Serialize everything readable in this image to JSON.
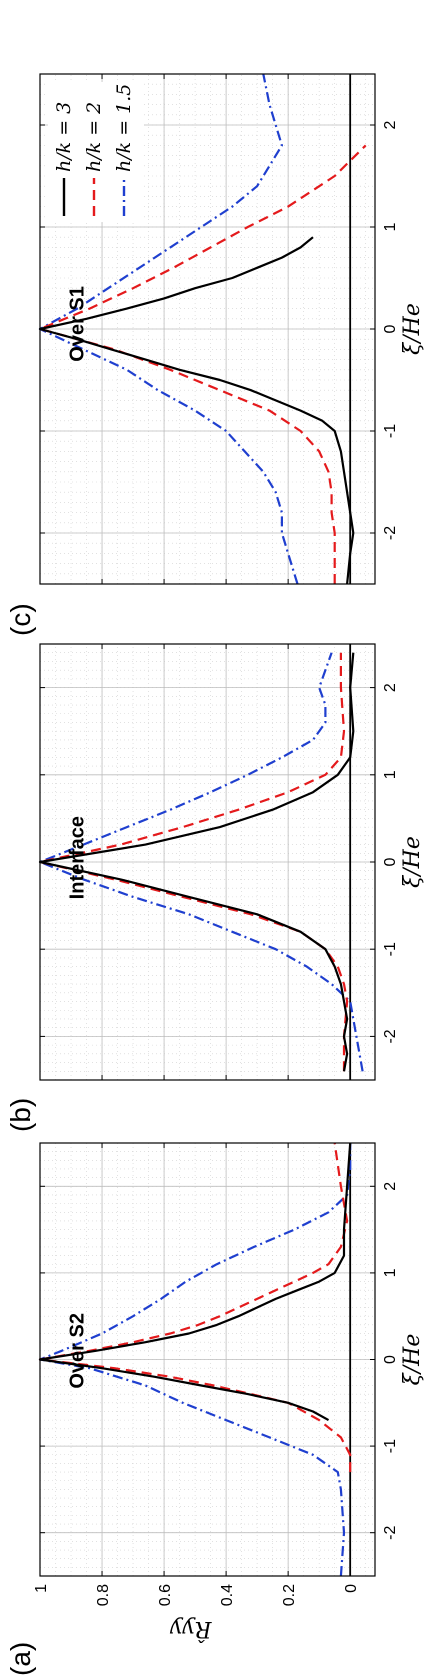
{
  "figure": {
    "ylabel": "R̂yy"
  },
  "legend": [
    {
      "label": "h/k = 3",
      "color": "#000000",
      "dash": "solid"
    },
    {
      "label": "h/k = 2",
      "color": "#e41a1c",
      "dash": "dashed"
    },
    {
      "label": "h/k = 1.5",
      "color": "#1f3fcf",
      "dash": "dashdot"
    }
  ],
  "chart_data": [
    {
      "type": "line",
      "panel_label": "(a)",
      "title": "Over S2",
      "xlabel": "ξ/He",
      "ylabel": "R̂yy",
      "xlim": [
        -2.5,
        2.5
      ],
      "ylim": [
        -0.08,
        1.0
      ],
      "xticks": [
        -2,
        -1,
        0,
        1,
        2
      ],
      "yticks": [
        0,
        0.2,
        0.4,
        0.6,
        0.8,
        1
      ],
      "grid": true,
      "series": [
        {
          "name": "h/k = 3",
          "x": [
            -0.7,
            -0.6,
            -0.5,
            -0.4,
            -0.3,
            -0.2,
            -0.1,
            0,
            0.1,
            0.2,
            0.3,
            0.4,
            0.5,
            0.6,
            0.7,
            0.8,
            0.9,
            1.0,
            1.2,
            1.5,
            2.0,
            2.5
          ],
          "values": [
            0.07,
            0.12,
            0.2,
            0.33,
            0.48,
            0.63,
            0.8,
            1,
            0.82,
            0.66,
            0.52,
            0.43,
            0.36,
            0.3,
            0.24,
            0.17,
            0.1,
            0.05,
            0.02,
            0.02,
            0.01,
            0.0
          ]
        },
        {
          "name": "h/k = 2",
          "x": [
            -1.3,
            -1.1,
            -0.9,
            -0.7,
            -0.5,
            -0.4,
            -0.3,
            -0.2,
            -0.1,
            0,
            0.1,
            0.2,
            0.3,
            0.4,
            0.5,
            0.6,
            0.7,
            0.8,
            0.9,
            1.0,
            1.1,
            1.3,
            1.6,
            2.0,
            2.5
          ],
          "values": [
            0.0,
            0.0,
            0.03,
            0.1,
            0.2,
            0.32,
            0.44,
            0.58,
            0.76,
            1,
            0.84,
            0.7,
            0.58,
            0.49,
            0.42,
            0.36,
            0.3,
            0.24,
            0.18,
            0.12,
            0.07,
            0.03,
            0.01,
            0.03,
            0.05
          ]
        },
        {
          "name": "h/k = 1.5",
          "x": [
            -2.5,
            -2.0,
            -1.5,
            -1.3,
            -1.1,
            -0.9,
            -0.7,
            -0.5,
            -0.3,
            -0.1,
            0,
            0.1,
            0.3,
            0.5,
            0.7,
            0.9,
            1.1,
            1.3,
            1.5,
            1.7,
            1.9,
            2.2,
            2.5
          ],
          "values": [
            0.03,
            0.02,
            0.03,
            0.04,
            0.12,
            0.26,
            0.4,
            0.54,
            0.66,
            0.84,
            1,
            0.93,
            0.8,
            0.7,
            0.61,
            0.53,
            0.43,
            0.31,
            0.18,
            0.07,
            0.01,
            0.0,
            0.0
          ]
        }
      ]
    },
    {
      "type": "line",
      "panel_label": "(b)",
      "title": "Interface",
      "xlabel": "ξ/He",
      "xlim": [
        -2.5,
        2.5
      ],
      "ylim": [
        -0.08,
        1.0
      ],
      "xticks": [
        -2,
        -1,
        0,
        1,
        2
      ],
      "yticks": [
        0,
        0.2,
        0.4,
        0.6,
        0.8,
        1
      ],
      "grid": true,
      "series": [
        {
          "name": "h/k = 3",
          "x": [
            -2.4,
            -2.2,
            -2.0,
            -1.8,
            -1.6,
            -1.4,
            -1.2,
            -1.0,
            -0.8,
            -0.6,
            -0.4,
            -0.2,
            0,
            0.2,
            0.4,
            0.6,
            0.8,
            1.0,
            1.2,
            1.5,
            2.0,
            2.4
          ],
          "values": [
            0.02,
            0.01,
            0.02,
            0.01,
            0.02,
            0.03,
            0.05,
            0.08,
            0.16,
            0.3,
            0.52,
            0.74,
            1,
            0.66,
            0.42,
            0.25,
            0.12,
            0.04,
            0.0,
            -0.01,
            0.0,
            -0.01
          ]
        },
        {
          "name": "h/k = 2",
          "x": [
            -2.4,
            -2.0,
            -1.6,
            -1.4,
            -1.2,
            -1.0,
            -0.8,
            -0.6,
            -0.4,
            -0.2,
            0,
            0.2,
            0.4,
            0.6,
            0.8,
            1.0,
            1.2,
            1.5,
            2.0,
            2.4
          ],
          "values": [
            0.02,
            0.02,
            0.01,
            0.02,
            0.04,
            0.08,
            0.16,
            0.32,
            0.54,
            0.76,
            1,
            0.74,
            0.54,
            0.36,
            0.2,
            0.08,
            0.03,
            0.02,
            0.03,
            0.03
          ]
        },
        {
          "name": "h/k = 1.5",
          "x": [
            -2.4,
            -2.2,
            -2.0,
            -1.8,
            -1.6,
            -1.4,
            -1.2,
            -1.0,
            -0.8,
            -0.6,
            -0.4,
            -0.2,
            0,
            0.2,
            0.4,
            0.6,
            0.8,
            1.0,
            1.2,
            1.4,
            1.6,
            1.8,
            2.0,
            2.4
          ],
          "values": [
            -0.04,
            -0.03,
            -0.02,
            -0.01,
            0.0,
            0.06,
            0.14,
            0.24,
            0.38,
            0.52,
            0.7,
            0.86,
            1,
            0.86,
            0.72,
            0.58,
            0.45,
            0.33,
            0.22,
            0.12,
            0.08,
            0.08,
            0.1,
            0.06
          ]
        }
      ]
    },
    {
      "type": "line",
      "panel_label": "(c)",
      "title": "Over S1",
      "xlabel": "ξ/He",
      "xlim": [
        -2.5,
        2.5
      ],
      "ylim": [
        -0.08,
        1.0
      ],
      "xticks": [
        -2,
        -1,
        0,
        1,
        2
      ],
      "yticks": [
        0,
        0.2,
        0.4,
        0.6,
        0.8,
        1
      ],
      "grid": true,
      "series": [
        {
          "name": "h/k = 3",
          "x": [
            -2.5,
            -2.2,
            -2.0,
            -1.8,
            -1.6,
            -1.4,
            -1.2,
            -1.0,
            -0.9,
            -0.8,
            -0.7,
            -0.6,
            -0.5,
            -0.4,
            -0.3,
            -0.2,
            -0.1,
            0,
            0.1,
            0.2,
            0.3,
            0.4,
            0.5,
            0.6,
            0.7,
            0.8,
            0.9
          ],
          "values": [
            0.01,
            0.0,
            -0.01,
            0.0,
            0.01,
            0.02,
            0.03,
            0.05,
            0.09,
            0.16,
            0.24,
            0.32,
            0.42,
            0.55,
            0.66,
            0.77,
            0.88,
            1,
            0.85,
            0.72,
            0.6,
            0.5,
            0.38,
            0.3,
            0.22,
            0.16,
            0.12
          ]
        },
        {
          "name": "h/k = 2",
          "x": [
            -2.5,
            -2.2,
            -2.0,
            -1.8,
            -1.6,
            -1.4,
            -1.2,
            -1.0,
            -0.8,
            -0.6,
            -0.4,
            -0.2,
            0,
            0.2,
            0.4,
            0.6,
            0.8,
            1.0,
            1.2,
            1.5,
            1.8
          ],
          "values": [
            0.05,
            0.05,
            0.05,
            0.06,
            0.06,
            0.07,
            0.1,
            0.16,
            0.26,
            0.42,
            0.58,
            0.76,
            1,
            0.84,
            0.7,
            0.57,
            0.45,
            0.33,
            0.2,
            0.05,
            -0.05
          ]
        },
        {
          "name": "h/k = 1.5",
          "x": [
            -2.5,
            -2.2,
            -2.0,
            -1.8,
            -1.6,
            -1.4,
            -1.2,
            -1.0,
            -0.8,
            -0.6,
            -0.4,
            -0.2,
            0,
            0.2,
            0.4,
            0.6,
            0.8,
            1.0,
            1.2,
            1.4,
            1.6,
            1.8,
            2.0,
            2.2,
            2.5
          ],
          "values": [
            0.17,
            0.2,
            0.22,
            0.22,
            0.24,
            0.28,
            0.34,
            0.4,
            0.5,
            0.62,
            0.72,
            0.86,
            1,
            0.88,
            0.78,
            0.68,
            0.58,
            0.48,
            0.38,
            0.3,
            0.26,
            0.22,
            0.24,
            0.26,
            0.28
          ]
        }
      ]
    }
  ]
}
